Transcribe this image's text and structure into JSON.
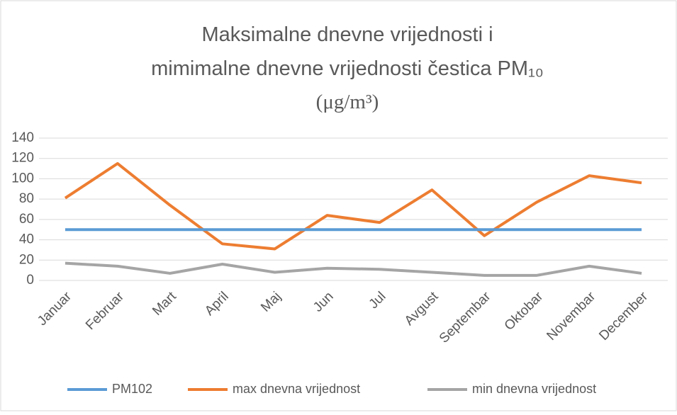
{
  "chart_data": {
    "type": "line",
    "title": [
      "Maksimalne dnevne vrijednosti i",
      "mimimalne dnevne vrijednosti čestica PM₁₀",
      "(μg/m³)"
    ],
    "categories": [
      "Januar",
      "Februar",
      "Mart",
      "April",
      "Maj",
      "Jun",
      "Jul",
      "Avgust",
      "Septembar",
      "Oktobar",
      "Novembar",
      "December"
    ],
    "series": [
      {
        "name": "PM102",
        "color": "#5b9bd5",
        "values": [
          50,
          50,
          50,
          50,
          50,
          50,
          50,
          50,
          50,
          50,
          50,
          50
        ]
      },
      {
        "name": "max dnevna vrijednost",
        "color": "#ed7d31",
        "values": [
          81,
          115,
          74,
          36,
          31,
          64,
          57,
          89,
          44,
          77,
          103,
          96
        ]
      },
      {
        "name": "min dnevna vrijednost",
        "color": "#a5a5a5",
        "values": [
          17,
          14,
          7,
          16,
          8,
          12,
          11,
          8,
          5,
          5,
          14,
          7
        ]
      }
    ],
    "ylim": [
      0,
      140
    ],
    "yticks": [
      0,
      20,
      40,
      60,
      80,
      100,
      120,
      140
    ],
    "grid": true,
    "legend": "bottom"
  }
}
